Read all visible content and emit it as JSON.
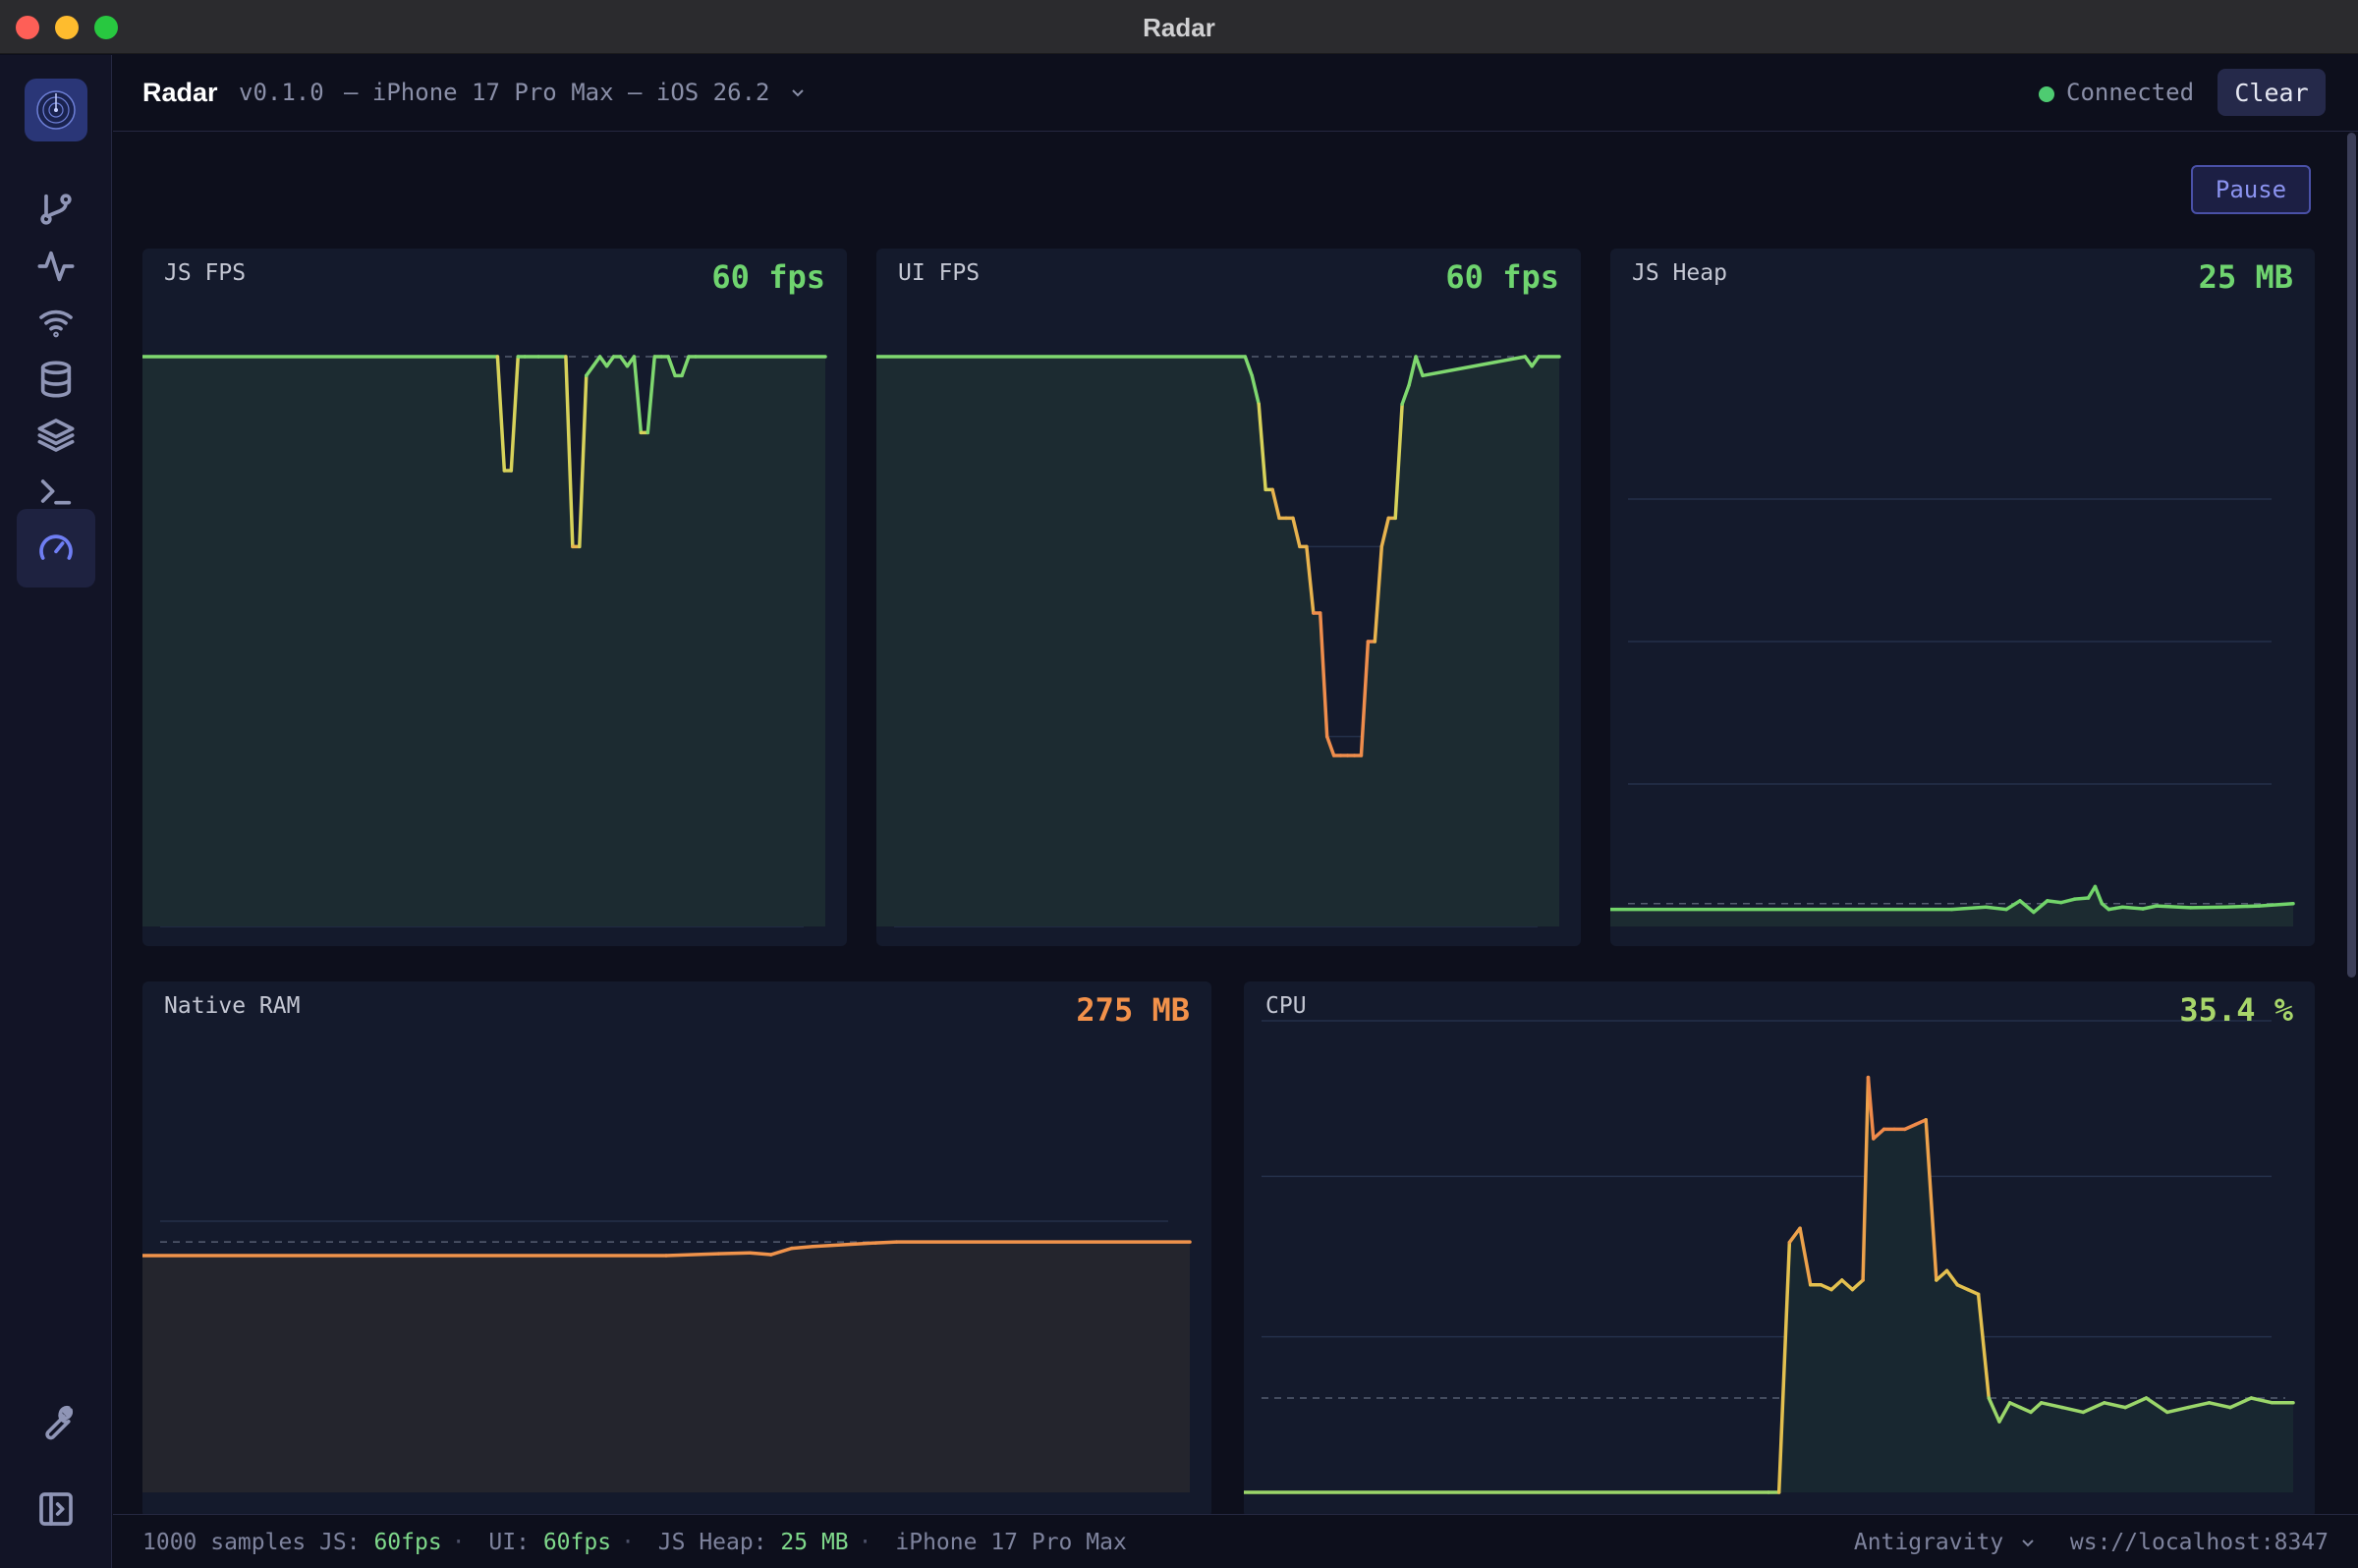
{
  "window": {
    "title": "Radar"
  },
  "header": {
    "app_name": "Radar",
    "version": "v0.1.0",
    "device": "— iPhone 17 Pro Max — iOS 26.2",
    "status": "Connected",
    "clear_label": "Clear"
  },
  "controls": {
    "pause_label": "Pause"
  },
  "sidebar": {
    "items": [
      {
        "icon": "git-branch-icon"
      },
      {
        "icon": "activity-icon"
      },
      {
        "icon": "wifi-icon"
      },
      {
        "icon": "database-icon"
      },
      {
        "icon": "layers-icon"
      },
      {
        "icon": "terminal-icon"
      },
      {
        "icon": "gauge-icon",
        "active": true
      }
    ],
    "bottom": [
      {
        "icon": "wrench-icon"
      },
      {
        "icon": "sidebar-toggle-icon"
      }
    ]
  },
  "panels": {
    "js_fps": {
      "title": "JS FPS",
      "value": "60 fps",
      "color": "#6fd46f"
    },
    "ui_fps": {
      "title": "UI FPS",
      "value": "60 fps",
      "color": "#6fd46f"
    },
    "js_heap": {
      "title": "JS Heap",
      "value": "25 MB",
      "color": "#6fd46f"
    },
    "native_ram": {
      "title": "Native RAM",
      "value": "275 MB",
      "color": "#f2914a"
    },
    "cpu": {
      "title": "CPU",
      "value": "35.4 %",
      "color": "#a8d66a"
    }
  },
  "footer": {
    "samples": "1000 samples",
    "js_label": "JS:",
    "js_value": "60fps",
    "ui_label": "UI:",
    "ui_value": "60fps",
    "heap_label": "JS Heap:",
    "heap_value": "25 MB",
    "device": "iPhone 17 Pro Max",
    "editor": "Antigravity",
    "ws": "ws://localhost:8347"
  },
  "chart_data": [
    {
      "type": "line",
      "name": "JS FPS",
      "ylim": [
        0,
        60
      ],
      "x": [
        0,
        52,
        53,
        54,
        55,
        56,
        58,
        62,
        63,
        64,
        65,
        66,
        67,
        68,
        69,
        70,
        71,
        72,
        73,
        74,
        75,
        76,
        77,
        78,
        79,
        80,
        81,
        100
      ],
      "y": [
        60,
        60,
        48,
        48,
        60,
        60,
        60,
        60,
        40,
        40,
        58,
        59,
        60,
        59,
        60,
        60,
        59,
        60,
        52,
        52,
        60,
        60,
        60,
        58,
        58,
        60,
        60,
        60
      ]
    },
    {
      "type": "line",
      "name": "UI FPS",
      "ylim": [
        0,
        60
      ],
      "x": [
        0,
        54,
        55,
        56,
        57,
        58,
        59,
        60,
        61,
        62,
        63,
        64,
        65,
        66,
        67,
        68,
        69,
        70,
        71,
        72,
        73,
        74,
        75,
        76,
        77,
        78,
        79,
        80,
        95,
        96,
        97,
        100
      ],
      "y": [
        60,
        60,
        58,
        55,
        46,
        46,
        43,
        43,
        43,
        40,
        40,
        33,
        33,
        20,
        18,
        18,
        18,
        18,
        18,
        30,
        30,
        40,
        43,
        43,
        55,
        57,
        60,
        58,
        60,
        59,
        60,
        60
      ]
    },
    {
      "type": "line",
      "name": "JS Heap",
      "ylim": [
        0,
        100
      ],
      "x": [
        0,
        50,
        55,
        58,
        60,
        62,
        64,
        66,
        68,
        70,
        71,
        72,
        73,
        74,
        75,
        78,
        80,
        85,
        90,
        95,
        100
      ],
      "y": [
        3,
        3,
        3.4,
        3,
        4.5,
        2.5,
        4.5,
        4.2,
        4.8,
        5,
        7,
        4,
        3,
        3.2,
        3.4,
        3.1,
        3.6,
        3.3,
        3.4,
        3.6,
        4
      ]
    },
    {
      "type": "line",
      "name": "Native RAM",
      "ylim": [
        0,
        500
      ],
      "x": [
        0,
        50,
        55,
        58,
        60,
        62,
        64,
        70,
        72,
        100
      ],
      "y": [
        262,
        262,
        264,
        265,
        263,
        270,
        272,
        276,
        277,
        277
      ]
    },
    {
      "type": "line",
      "name": "CPU",
      "ylim": [
        0,
        100
      ],
      "x": [
        0,
        50,
        51,
        52,
        53,
        54,
        55,
        56,
        57,
        58,
        59,
        59.5,
        60,
        61,
        62,
        63,
        64,
        65,
        66,
        67,
        68,
        69,
        70,
        71,
        72,
        73,
        74,
        75,
        76,
        78,
        80,
        82,
        84,
        86,
        88,
        90,
        92,
        94,
        96,
        98,
        100
      ],
      "y": [
        0,
        0,
        0,
        53,
        56,
        44,
        44,
        43,
        45,
        43,
        45,
        88,
        75,
        77,
        77,
        77,
        78,
        79,
        45,
        47,
        44,
        43,
        42,
        20,
        15,
        19,
        18,
        17,
        19,
        18,
        17,
        19,
        18,
        20,
        17,
        18,
        19,
        18,
        20,
        19,
        19
      ]
    }
  ]
}
